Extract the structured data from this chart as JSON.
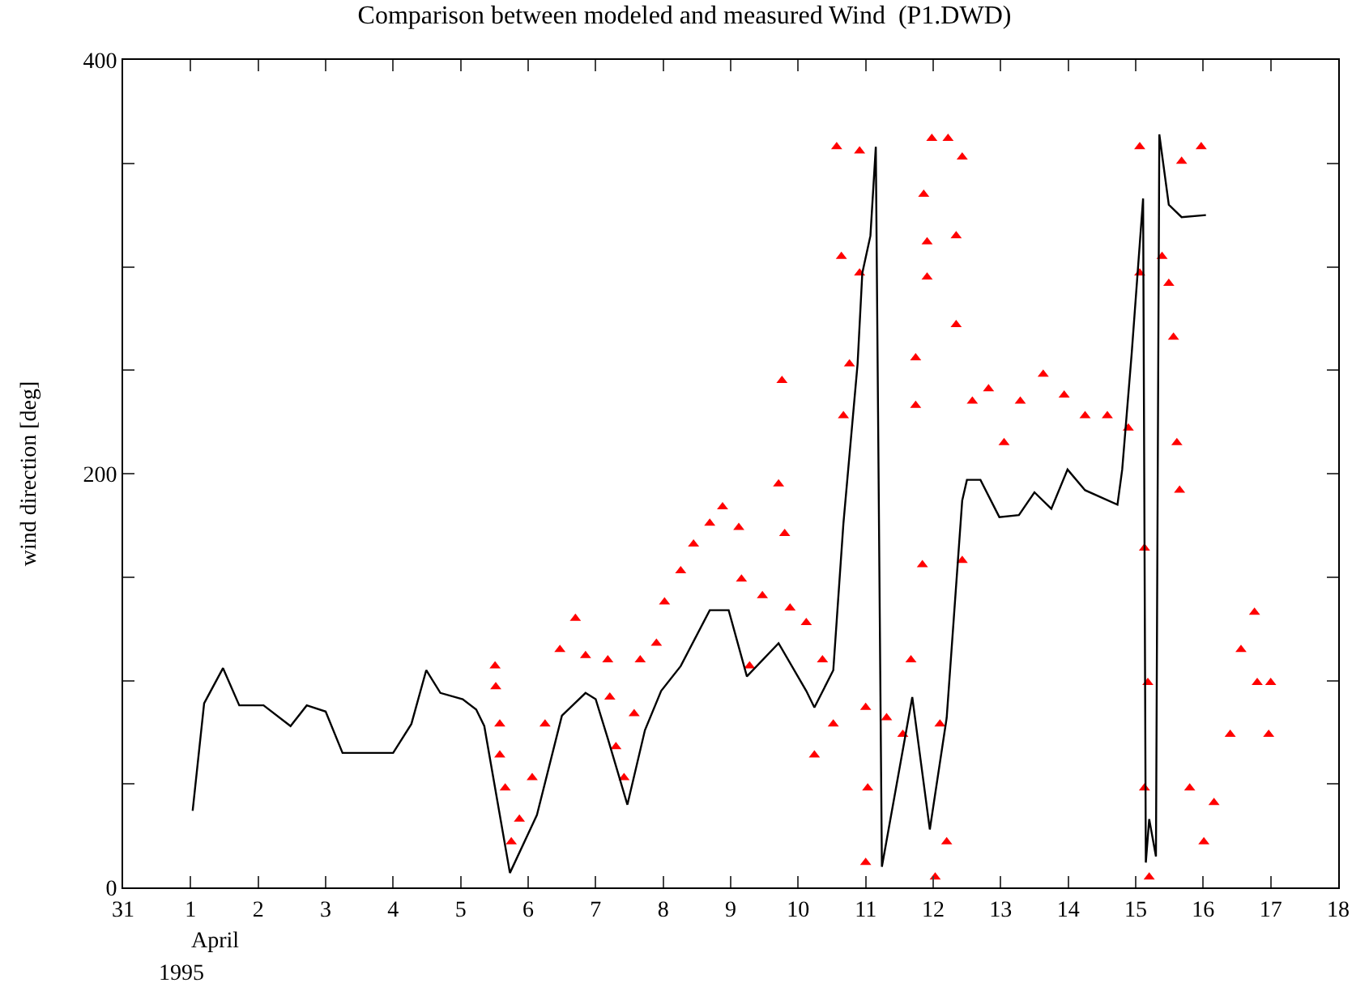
{
  "chart_data": {
    "type": "line",
    "title": "Comparison between modeled and measured Wind  (P1.DWD)",
    "ylabel": "wind direction [deg]",
    "annotations": [
      "April",
      "1995"
    ],
    "xlim": [
      "1995-03-31",
      "1995-04-18"
    ],
    "xticks": [
      {
        "value": "1995-03-31",
        "label": "31"
      },
      {
        "value": "1995-04-01",
        "label": "1"
      },
      {
        "value": "1995-04-02",
        "label": "2"
      },
      {
        "value": "1995-04-03",
        "label": "3"
      },
      {
        "value": "1995-04-04",
        "label": "4"
      },
      {
        "value": "1995-04-05",
        "label": "5"
      },
      {
        "value": "1995-04-06",
        "label": "6"
      },
      {
        "value": "1995-04-07",
        "label": "7"
      },
      {
        "value": "1995-04-08",
        "label": "8"
      },
      {
        "value": "1995-04-09",
        "label": "9"
      },
      {
        "value": "1995-04-10",
        "label": "10"
      },
      {
        "value": "1995-04-11",
        "label": "11"
      },
      {
        "value": "1995-04-12",
        "label": "12"
      },
      {
        "value": "1995-04-13",
        "label": "13"
      },
      {
        "value": "1995-04-14",
        "label": "14"
      },
      {
        "value": "1995-04-15",
        "label": "15"
      },
      {
        "value": "1995-04-16",
        "label": "16"
      },
      {
        "value": "1995-04-17",
        "label": "17"
      },
      {
        "value": "1995-04-18",
        "label": "18"
      }
    ],
    "ylim": [
      0,
      400
    ],
    "yticks": [
      0,
      {
        "value": 50,
        "label": null
      },
      {
        "value": 100,
        "label": null
      },
      {
        "value": 150,
        "label": null
      },
      200,
      {
        "value": 250,
        "label": null
      },
      {
        "value": 300,
        "label": null
      },
      {
        "value": 350,
        "label": null
      },
      400
    ],
    "series": [
      {
        "color": "#000000",
        "x": [
          "1995-04-01T00:43",
          "1995-04-01T04:48",
          "1995-04-01T11:31",
          "1995-04-01T17:17",
          "1995-04-02T01:55",
          "1995-04-02T11:31",
          "1995-04-02T17:17",
          "1995-04-03T00:00",
          "1995-04-03T06:00",
          "1995-04-04T00:00",
          "1995-04-04T06:29",
          "1995-04-04T11:46",
          "1995-04-04T16:48",
          "1995-04-05T00:43",
          "1995-04-05T05:31",
          "1995-04-05T08:24",
          "1995-04-05T17:31",
          "1995-04-06T03:07",
          "1995-04-06T12:00",
          "1995-04-06T20:24",
          "1995-04-07T00:00",
          "1995-04-07T04:19",
          "1995-04-07T11:17",
          "1995-04-07T17:31",
          "1995-04-07T23:17",
          "1995-04-08T06:14",
          "1995-04-08T16:34",
          "1995-04-08T23:17",
          "1995-04-09T05:46",
          "1995-04-09T17:02",
          "1995-04-10T02:53",
          "1995-04-10T05:46",
          "1995-04-10T12:29",
          "1995-04-10T16:05",
          "1995-04-10T21:07",
          "1995-04-10T22:48",
          "1995-04-11T01:41",
          "1995-04-11T03:36",
          "1995-04-11T05:46",
          "1995-04-11T16:34",
          "1995-04-11T22:48",
          "1995-04-12T04:48",
          "1995-04-12T10:19",
          "1995-04-12T12:00",
          "1995-04-12T16:48",
          "1995-04-12T23:31",
          "1995-04-13T06:29",
          "1995-04-13T12:00",
          "1995-04-13T18:00",
          "1995-04-13T23:46",
          "1995-04-14T06:00",
          "1995-04-14T17:31",
          "1995-04-14T19:12",
          "1995-04-14T22:34",
          "1995-04-15T02:38",
          "1995-04-15T03:36",
          "1995-04-15T04:48",
          "1995-04-15T07:12",
          "1995-04-15T08:24",
          "1995-04-15T11:46",
          "1995-04-15T16:19",
          "1995-04-16T00:58"
        ],
        "values": [
          37,
          89,
          106,
          88,
          88,
          78,
          88,
          85,
          65,
          65,
          79,
          105,
          94,
          91,
          86,
          78,
          7,
          35,
          83,
          94,
          91,
          72,
          40,
          76,
          95,
          107,
          134,
          134,
          102,
          118,
          95,
          87,
          105,
          176,
          253,
          297,
          315,
          358,
          10,
          92,
          28,
          82,
          187,
          197,
          197,
          179,
          180,
          191,
          183,
          202,
          192,
          185,
          202,
          258,
          333,
          12,
          33,
          15,
          364,
          330,
          324,
          325
        ]
      },
      {
        "type": "scatter",
        "color": "#ff0000",
        "marker": "triangle",
        "x": [
          "1995-04-05T12:14",
          "1995-04-05T12:29",
          "1995-04-05T13:55",
          "1995-04-05T13:55",
          "1995-04-05T15:50",
          "1995-04-05T18:00",
          "1995-04-05T20:53",
          "1995-04-06T01:26",
          "1995-04-06T06:00",
          "1995-04-06T11:17",
          "1995-04-06T16:48",
          "1995-04-06T20:24",
          "1995-04-07T04:19",
          "1995-04-07T05:02",
          "1995-04-07T07:12",
          "1995-04-07T10:05",
          "1995-04-07T13:41",
          "1995-04-07T15:50",
          "1995-04-07T21:36",
          "1995-04-08T00:29",
          "1995-04-08T06:14",
          "1995-04-08T10:48",
          "1995-04-08T16:34",
          "1995-04-08T21:07",
          "1995-04-09T02:53",
          "1995-04-09T03:50",
          "1995-04-09T06:43",
          "1995-04-09T11:17",
          "1995-04-09T17:02",
          "1995-04-09T18:14",
          "1995-04-09T19:12",
          "1995-04-09T21:07",
          "1995-04-10T02:53",
          "1995-04-10T05:46",
          "1995-04-10T08:38",
          "1995-04-10T12:29",
          "1995-04-10T13:41",
          "1995-04-10T15:22",
          "1995-04-10T16:05",
          "1995-04-10T18:14",
          "1995-04-10T21:50",
          "1995-04-10T21:50",
          "1995-04-11T00:00",
          "1995-04-11T00:43",
          "1995-04-11T00:00",
          "1995-04-11T07:26",
          "1995-04-11T13:12",
          "1995-04-11T16:05",
          "1995-04-11T17:46",
          "1995-04-11T17:46",
          "1995-04-11T20:10",
          "1995-04-11T20:38",
          "1995-04-11T21:50",
          "1995-04-11T21:50",
          "1995-04-11T23:31",
          "1995-04-12T00:43",
          "1995-04-12T02:24",
          "1995-04-12T04:48",
          "1995-04-12T05:17",
          "1995-04-12T08:10",
          "1995-04-12T08:10",
          "1995-04-12T10:19",
          "1995-04-12T10:19",
          "1995-04-12T13:55",
          "1995-04-12T19:41",
          "1995-04-13T01:12",
          "1995-04-13T06:58",
          "1995-04-13T15:07",
          "1995-04-13T22:34",
          "1995-04-14T06:00",
          "1995-04-14T13:55",
          "1995-04-14T21:22",
          "1995-04-15T01:26",
          "1995-04-15T01:26",
          "1995-04-15T03:07",
          "1995-04-15T04:19",
          "1995-04-15T03:07",
          "1995-04-15T04:48",
          "1995-04-15T09:22",
          "1995-04-15T11:46",
          "1995-04-15T13:26",
          "1995-04-15T14:38",
          "1995-04-15T15:36",
          "1995-04-15T16:19",
          "1995-04-15T19:12",
          "1995-04-15T23:17",
          "1995-04-16T00:14",
          "1995-04-16T03:50",
          "1995-04-16T09:36",
          "1995-04-16T13:26",
          "1995-04-16T18:14",
          "1995-04-16T19:12",
          "1995-04-16T23:17",
          "1995-04-17T00:00"
        ],
        "values": [
          107,
          97,
          79,
          64,
          48,
          22,
          33,
          53,
          79,
          115,
          130,
          112,
          110,
          92,
          68,
          53,
          84,
          110,
          118,
          138,
          153,
          166,
          176,
          184,
          174,
          149,
          107,
          141,
          195,
          245,
          171,
          135,
          128,
          64,
          110,
          79,
          358,
          305,
          228,
          253,
          297,
          356,
          87,
          48,
          12,
          82,
          74,
          110,
          256,
          233,
          156,
          335,
          312,
          295,
          362,
          5,
          79,
          22,
          362,
          315,
          272,
          353,
          158,
          235,
          241,
          215,
          235,
          248,
          238,
          228,
          228,
          222,
          358,
          297,
          164,
          99,
          48,
          5,
          305,
          292,
          266,
          215,
          192,
          351,
          48,
          358,
          22,
          41,
          74,
          115,
          133,
          99,
          74,
          99
        ]
      }
    ]
  }
}
